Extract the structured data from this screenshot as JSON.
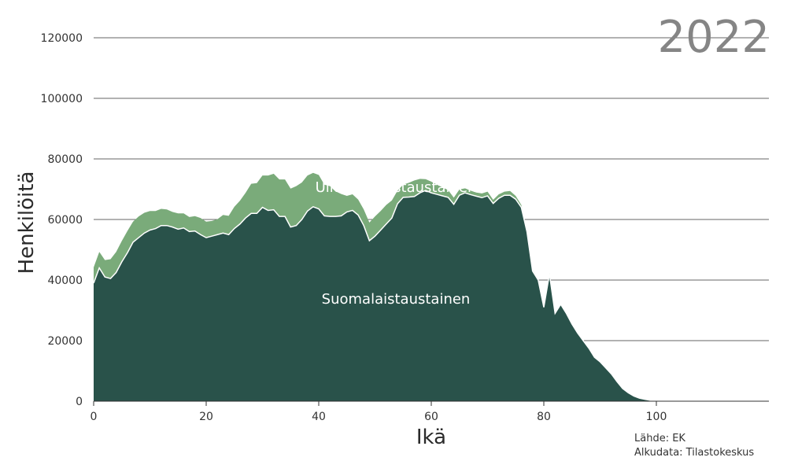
{
  "chart_data": {
    "type": "area",
    "stacked": true,
    "year_label": "2022",
    "xlabel": "Ikä",
    "ylabel": "Henkilöitä",
    "xlim": [
      0,
      120
    ],
    "ylim": [
      0,
      120000
    ],
    "x_ticks": [
      0,
      20,
      40,
      60,
      80,
      100
    ],
    "y_ticks": [
      0,
      20000,
      40000,
      60000,
      80000,
      100000,
      120000
    ],
    "grid": "horizontal",
    "colors": {
      "bottom": "#29524a",
      "top": "#7aab7a",
      "separator": "#ffffff",
      "grid": "#333333"
    },
    "x": [
      0,
      1,
      2,
      3,
      4,
      5,
      6,
      7,
      8,
      9,
      10,
      11,
      12,
      13,
      14,
      15,
      16,
      17,
      18,
      19,
      20,
      21,
      22,
      23,
      24,
      25,
      26,
      27,
      28,
      29,
      30,
      31,
      32,
      33,
      34,
      35,
      36,
      37,
      38,
      39,
      40,
      41,
      42,
      43,
      44,
      45,
      46,
      47,
      48,
      49,
      50,
      51,
      52,
      53,
      54,
      55,
      56,
      57,
      58,
      59,
      60,
      61,
      62,
      63,
      64,
      65,
      66,
      67,
      68,
      69,
      70,
      71,
      72,
      73,
      74,
      75,
      76,
      77,
      78,
      79,
      80,
      81,
      82,
      83,
      84,
      85,
      86,
      87,
      88,
      89,
      90,
      91,
      92,
      93,
      94,
      95,
      96,
      97,
      98,
      99,
      100,
      101,
      102,
      103,
      104,
      105,
      106,
      107,
      108,
      109,
      110,
      111,
      112,
      113,
      114,
      115,
      116,
      117,
      118,
      119,
      120
    ],
    "series": [
      {
        "name": "Suomalaistaustainen",
        "label": "Suomalaistaustainen",
        "values": [
          39000,
          44000,
          41000,
          40500,
          42500,
          46000,
          49000,
          52500,
          54000,
          55500,
          56500,
          57000,
          58000,
          58000,
          57500,
          56800,
          57200,
          56000,
          56200,
          55000,
          54000,
          54500,
          55000,
          55500,
          55000,
          57000,
          58500,
          60500,
          62000,
          62000,
          64000,
          63000,
          63200,
          61000,
          61000,
          57500,
          58000,
          60000,
          62800,
          64200,
          63500,
          61200,
          61000,
          61000,
          61200,
          62500,
          63000,
          61500,
          58000,
          53000,
          54500,
          56500,
          58500,
          60500,
          65200,
          67300,
          67400,
          67600,
          68800,
          69600,
          68800,
          68300,
          67800,
          67300,
          65000,
          68000,
          68800,
          68200,
          67700,
          67200,
          67800,
          65300,
          67000,
          68000,
          68000,
          66700,
          64000,
          56000,
          43000,
          40000,
          31000,
          42000,
          29000,
          32000,
          29000,
          25500,
          22500,
          20000,
          17500,
          14500,
          13000,
          11000,
          9000,
          6500,
          4200,
          2800,
          1700,
          1000,
          600,
          300,
          150,
          60,
          20,
          10,
          0,
          0,
          0,
          0,
          0,
          0,
          0,
          0,
          0,
          0,
          0,
          0,
          0,
          0,
          0,
          0,
          0
        ]
      },
      {
        "name": "Ulkomaalaistaustainen",
        "label": "Ulkomaalaistaustainen",
        "values": [
          5200,
          5300,
          5600,
          6400,
          6800,
          6900,
          7200,
          6800,
          7000,
          6700,
          6300,
          5800,
          5500,
          5300,
          5000,
          5200,
          4800,
          4800,
          4900,
          5500,
          5300,
          5000,
          5100,
          6000,
          6200,
          7200,
          7700,
          8300,
          9800,
          10000,
          10500,
          11500,
          11900,
          12200,
          12200,
          12700,
          13000,
          12200,
          11700,
          11200,
          11200,
          10300,
          10000,
          8300,
          7200,
          5300,
          5300,
          5100,
          5300,
          6000,
          6500,
          6300,
          6300,
          5800,
          4300,
          4200,
          4700,
          5300,
          4600,
          3700,
          3700,
          3200,
          2800,
          2400,
          2200,
          1900,
          1500,
          1300,
          1200,
          1400,
          1400,
          1200,
          1300,
          1200,
          1400,
          1100,
          800,
          600,
          400,
          300,
          300,
          200,
          200,
          150,
          150,
          100,
          100,
          80,
          60,
          50,
          40,
          30,
          20,
          10,
          10,
          0,
          0,
          0,
          0,
          0,
          0,
          0,
          0,
          0,
          0,
          0,
          0,
          0,
          0,
          0,
          0,
          0,
          0,
          0,
          0,
          0,
          0,
          0,
          0,
          0,
          0
        ]
      }
    ],
    "source_lines": [
      "Lähde: EK",
      "Alkudata: Tilastokeskus"
    ]
  }
}
